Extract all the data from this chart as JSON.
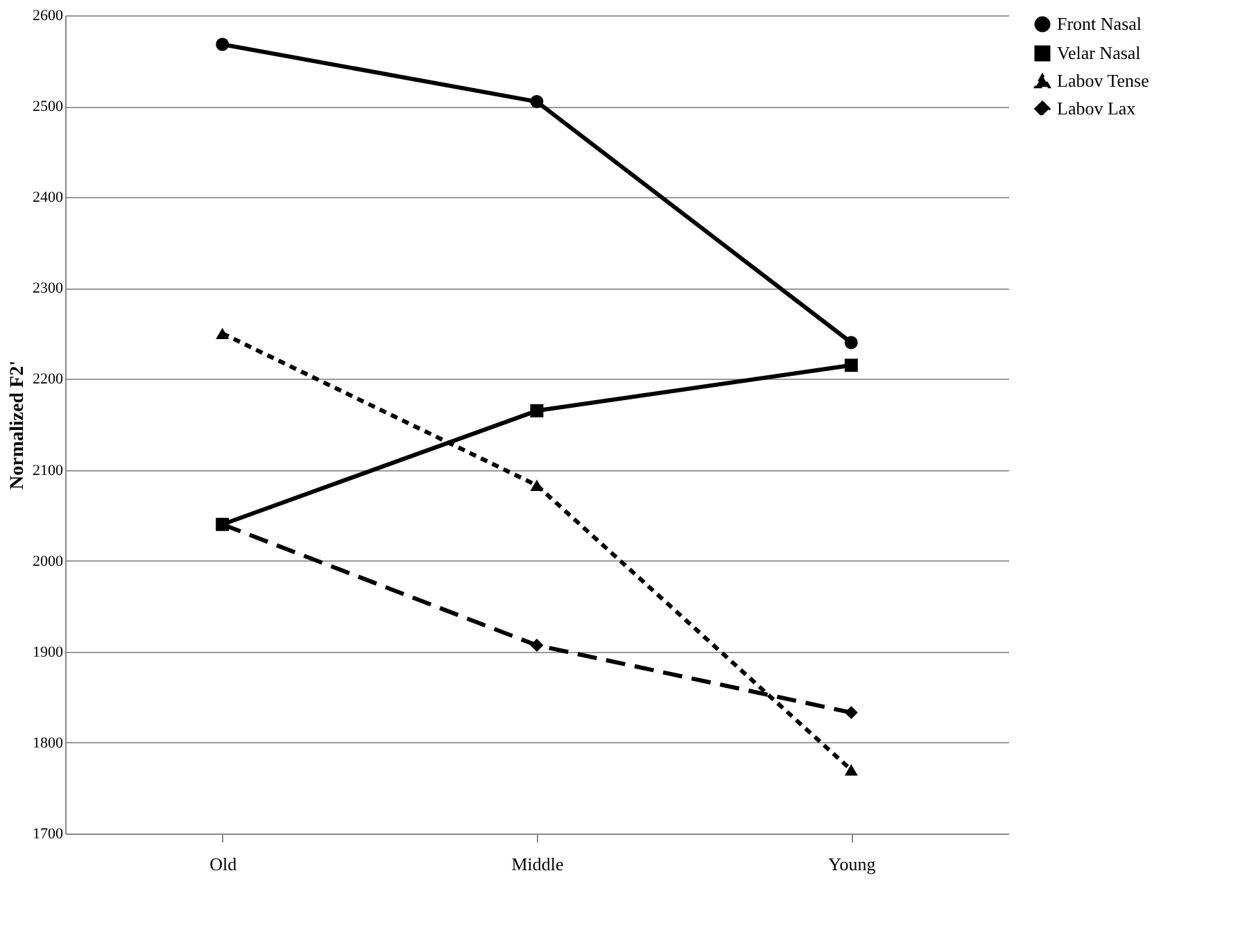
{
  "chart_data": {
    "type": "line",
    "ylabel": "Normalized F2'",
    "categories": [
      "Old",
      "Middle",
      "Young"
    ],
    "ylim": [
      1700,
      2600
    ],
    "yticks": [
      1700,
      1800,
      1900,
      2000,
      2100,
      2200,
      2300,
      2400,
      2500,
      2600
    ],
    "grid": "y",
    "legend": "right",
    "series": [
      {
        "name": "Front Nasal",
        "color": "#000000",
        "marker": "circle",
        "line_style": "solid",
        "values": [
          2568,
          2505,
          2240
        ]
      },
      {
        "name": "Velar Nasal",
        "color": "#000000",
        "marker": "square",
        "line_style": "solid",
        "values": [
          2040,
          2165,
          2215
        ]
      },
      {
        "name": "Labov Tense",
        "color": "#000000",
        "marker": "triangle",
        "line_style": "dotted",
        "values": [
          2250,
          2083,
          1770
        ]
      },
      {
        "name": "Labov Lax",
        "color": "#000000",
        "marker": "diamond",
        "line_style": "dashed",
        "values": [
          2040,
          1907,
          1833
        ]
      }
    ]
  }
}
